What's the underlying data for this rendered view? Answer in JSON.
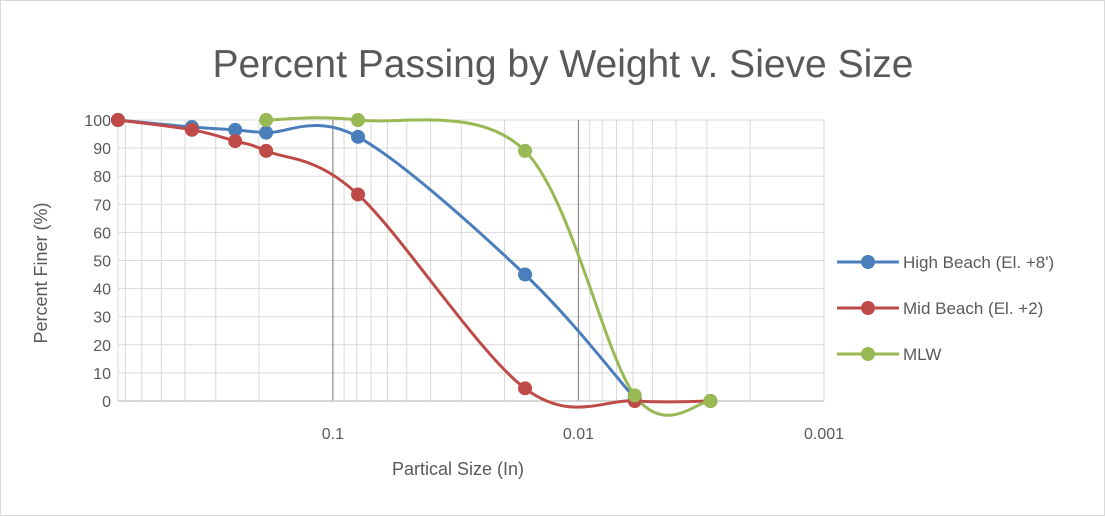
{
  "chart_data": {
    "type": "scatter",
    "title": "Percent Passing by Weight v. Sieve Size",
    "xlabel": "Partical Size (In)",
    "ylabel": "Percent Finer (%)",
    "x_scale": "log",
    "x_reversed": true,
    "xlim": [
      0.001,
      0.75
    ],
    "ylim": [
      0,
      100
    ],
    "x_tick_labels": [
      {
        "value": 0.1,
        "label": "0.1"
      },
      {
        "value": 0.01,
        "label": "0.01"
      },
      {
        "value": 0.001,
        "label": "0.001"
      }
    ],
    "y_ticks": [
      0,
      10,
      20,
      30,
      40,
      50,
      60,
      70,
      80,
      90,
      100
    ],
    "grid": true,
    "legend_position": "right",
    "series": [
      {
        "name": "High Beach (El. +8')",
        "color": "#4a7ebb",
        "x": [
          0.75,
          0.375,
          0.25,
          0.187,
          0.079,
          0.0165,
          0.0059
        ],
        "y": [
          100,
          97.5,
          96.5,
          95.5,
          94,
          45,
          1
        ]
      },
      {
        "name": "Mid Beach (El. +2)",
        "color": "#be4b48",
        "x": [
          0.75,
          0.375,
          0.25,
          0.187,
          0.079,
          0.0165,
          0.0059,
          0.0029
        ],
        "y": [
          100,
          96.5,
          92.5,
          89,
          73.5,
          4.5,
          0,
          0
        ]
      },
      {
        "name": "MLW",
        "color": "#98b954",
        "x": [
          0.187,
          0.079,
          0.0165,
          0.0059,
          0.0029
        ],
        "y": [
          100,
          100,
          89,
          2,
          0
        ]
      }
    ]
  }
}
